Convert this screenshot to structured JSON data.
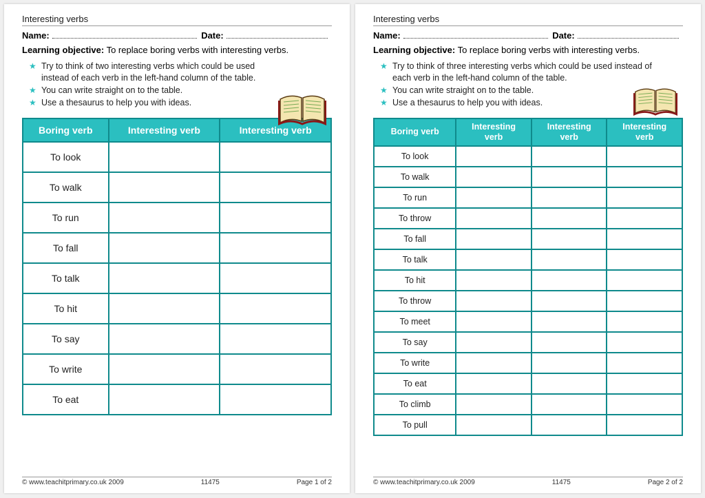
{
  "common": {
    "header_title": "Interesting verbs",
    "name_label": "Name:",
    "date_label": "Date:",
    "objective_label": "Learning objective:",
    "objective_text": "To replace boring verbs with interesting verbs.",
    "footer_copyright": "© www.teachitprimary.co.uk 2009",
    "footer_code": "11475",
    "table_header_boring": "Boring verb",
    "table_header_interesting": "Interesting verb",
    "colors": {
      "accent": "#2bbfc0",
      "table_border": "#0f8a8c",
      "text": "#222222",
      "rule": "#999999"
    }
  },
  "page1": {
    "bullets": [
      "Try to think of two interesting verbs which could be used instead of each verb in the left-hand column of the table.",
      "You can write straight on to the table.",
      "Use a thesaurus to help you with ideas."
    ],
    "columns": [
      "Boring verb",
      "Interesting verb",
      "Interesting verb"
    ],
    "rows": [
      "To look",
      "To walk",
      "To run",
      "To fall",
      "To talk",
      "To hit",
      "To say",
      "To write",
      "To eat"
    ],
    "footer_page": "Page 1 of 2"
  },
  "page2": {
    "bullets": [
      "Try to think of three interesting verbs which could be used instead of each verb in the left-hand column of the table.",
      "You can write straight on to the table.",
      "Use a thesaurus to help you with ideas."
    ],
    "columns": [
      "Boring verb",
      "Interesting verb",
      "Interesting verb",
      "Interesting verb"
    ],
    "rows": [
      "To look",
      "To walk",
      "To run",
      "To throw",
      "To fall",
      "To talk",
      "To hit",
      "To throw",
      "To meet",
      "To say",
      "To write",
      "To eat",
      "To climb",
      "To pull"
    ],
    "footer_page": "Page 2 of 2"
  }
}
